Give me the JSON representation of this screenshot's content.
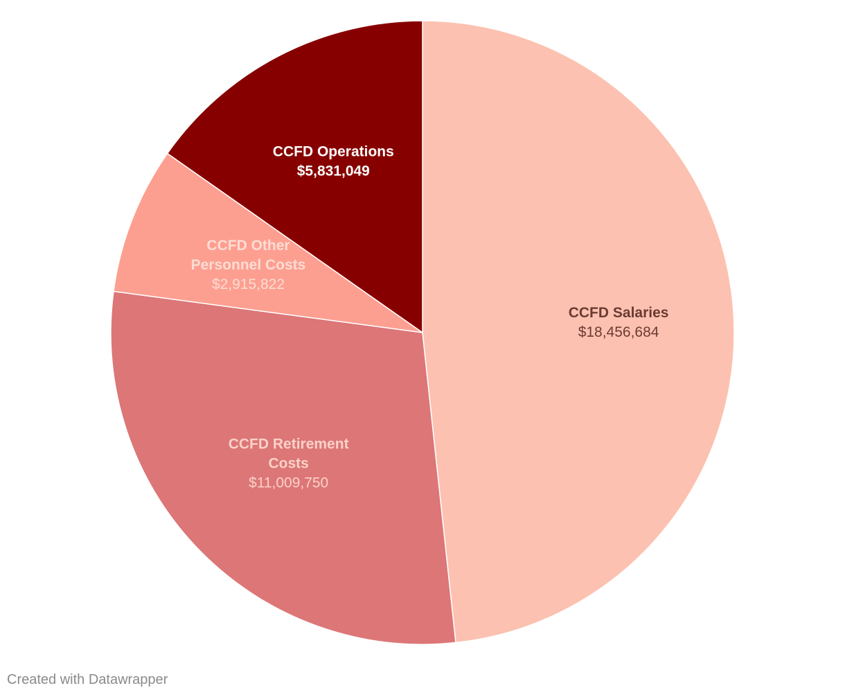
{
  "chart_data": {
    "type": "pie",
    "title": "",
    "direction": "clockwise from top",
    "slices": [
      {
        "name_lines": [
          "CCFD Salaries"
        ],
        "value": 18456684,
        "value_label": "$18,456,684",
        "color": "#fcc1b0",
        "name_color": "#6b3b32",
        "value_color": "#6b3b32",
        "value_bold": false
      },
      {
        "name_lines": [
          "CCFD Retirement",
          "Costs"
        ],
        "value": 11009750,
        "value_label": "$11,009,750",
        "color": "#dc7677",
        "name_color": "#fbd1c8",
        "value_color": "#fbd1c8",
        "value_bold": false
      },
      {
        "name_lines": [
          "CCFD Other",
          "Personnel Costs"
        ],
        "value": 2915822,
        "value_label": "$2,915,822",
        "color": "#fd9f90",
        "name_color": "#fddcd5",
        "value_color": "#fddcd5",
        "value_bold": false
      },
      {
        "name_lines": [
          "CCFD Operations"
        ],
        "value": 5831049,
        "value_label": "$5,831,049",
        "color": "#870000",
        "name_color": "#ffffff",
        "value_color": "#ffffff",
        "value_bold": true
      }
    ]
  },
  "footer": {
    "credit": "Created with Datawrapper"
  }
}
